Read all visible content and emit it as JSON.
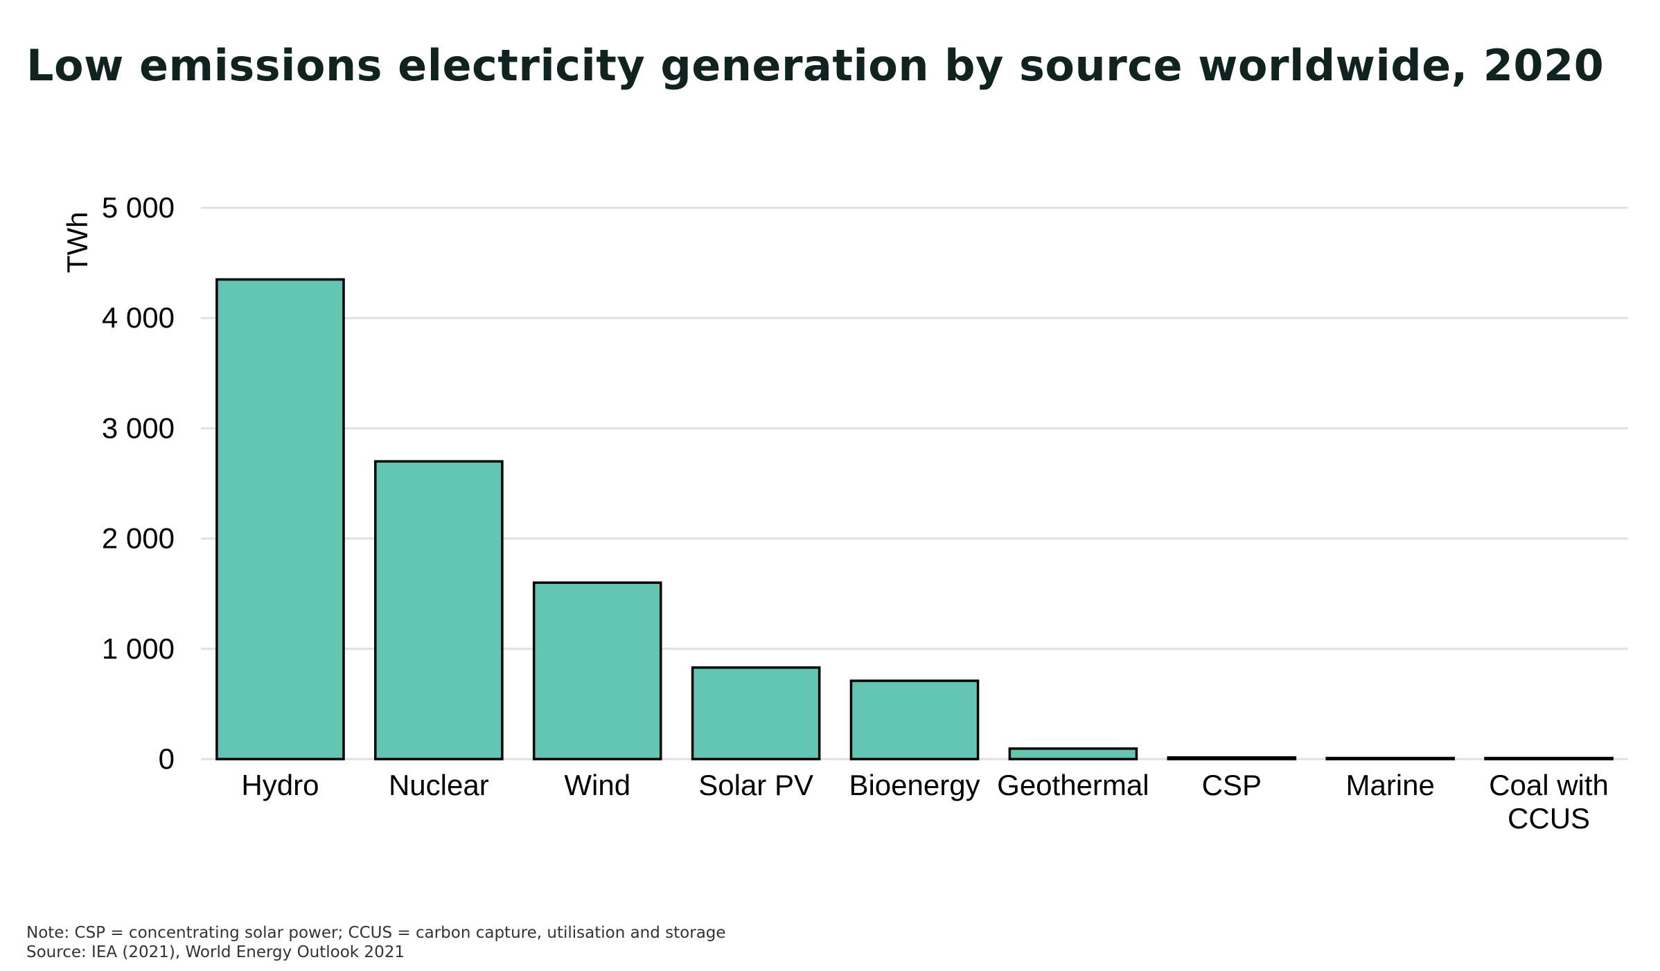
{
  "title": "Low emissions electricity generation by source worldwide, 2020",
  "chart_data": {
    "type": "bar",
    "ylabel": "TWh",
    "xlabel": "",
    "ylim": [
      0,
      5000
    ],
    "yticks": [
      0,
      1000,
      2000,
      3000,
      4000,
      5000
    ],
    "ytick_labels": [
      "0",
      "1 000",
      "2 000",
      "3 000",
      "4 000",
      "5 000"
    ],
    "categories": [
      "Hydro",
      "Nuclear",
      "Wind",
      "Solar PV",
      "Bioenergy",
      "Geothermal",
      "CSP",
      "Marine",
      "Coal with CCUS"
    ],
    "category_lines": [
      [
        "Hydro"
      ],
      [
        "Nuclear"
      ],
      [
        "Wind"
      ],
      [
        "Solar PV"
      ],
      [
        "Bioenergy"
      ],
      [
        "Geothermal"
      ],
      [
        "CSP"
      ],
      [
        "Marine"
      ],
      [
        "Coal with",
        "CCUS"
      ]
    ],
    "values": [
      4350,
      2700,
      1600,
      830,
      710,
      95,
      15,
      1,
      1
    ],
    "grid": true,
    "bar_color": "#61c5b1",
    "bar_stroke": "#000000",
    "grid_color": "#e0e0e0"
  },
  "notes": {
    "note": "Note: CSP = concentrating solar power; CCUS = carbon capture, utilisation and storage",
    "source": "Source: IEA (2021), World Energy Outlook 2021"
  }
}
